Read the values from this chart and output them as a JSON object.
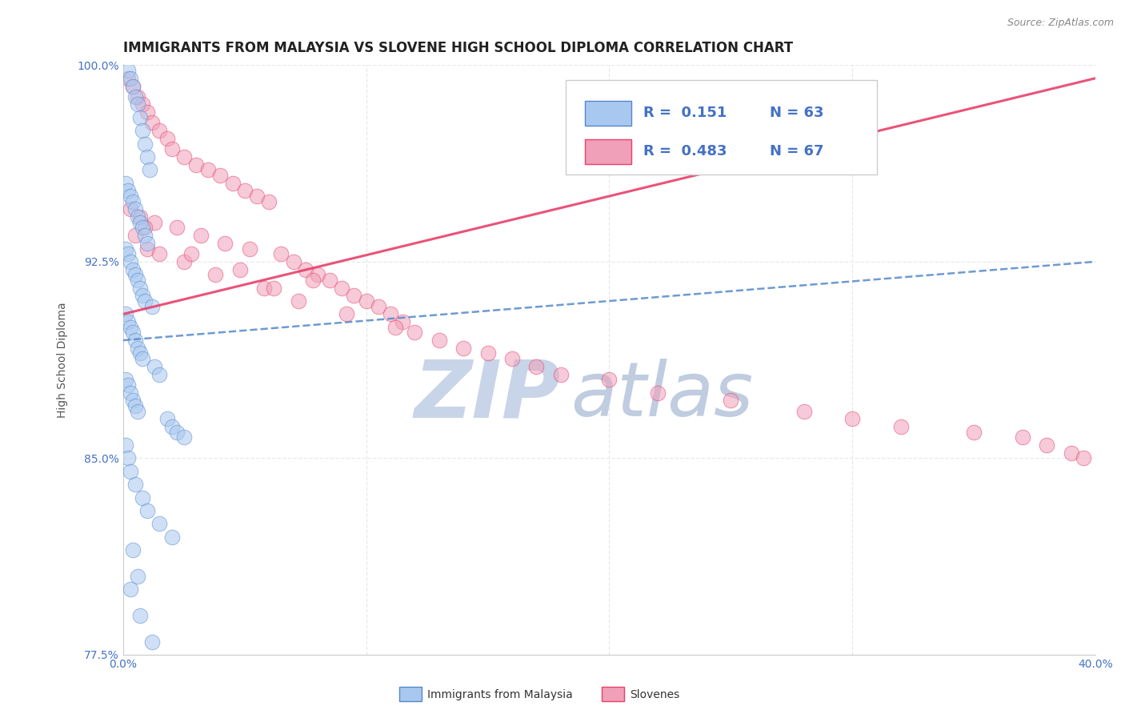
{
  "title": "IMMIGRANTS FROM MALAYSIA VS SLOVENE HIGH SCHOOL DIPLOMA CORRELATION CHART",
  "source_text": "Source: ZipAtlas.com",
  "ylabel": "High School Diploma",
  "xlim": [
    0.0,
    40.0
  ],
  "ylim": [
    77.5,
    100.0
  ],
  "ytick_positions": [
    77.5,
    85.0,
    92.5,
    100.0
  ],
  "ytick_labels": [
    "77.5%",
    "85.0%",
    "92.5%",
    "100.0%"
  ],
  "legend_r1": "R =  0.151",
  "legend_n1": "N = 63",
  "legend_r2": "R =  0.483",
  "legend_n2": "N = 67",
  "legend_label1": "Immigrants from Malaysia",
  "legend_label2": "Slovenes",
  "color_blue": "#A8C8F0",
  "color_pink": "#F0A0B8",
  "color_blue_line": "#5588CC",
  "color_pink_line": "#E8406A",
  "watermark_zip": "ZIP",
  "watermark_atlas": "atlas",
  "watermark_color_zip": "#C8D4E8",
  "watermark_color_atlas": "#C0CCE0",
  "grid_color": "#E8E8E8",
  "bg_color": "#FFFFFF",
  "title_fontsize": 12,
  "axis_fontsize": 10,
  "tick_fontsize": 10,
  "blue_scatter_x": [
    0.2,
    0.3,
    0.4,
    0.5,
    0.6,
    0.7,
    0.8,
    0.9,
    1.0,
    1.1,
    0.1,
    0.2,
    0.3,
    0.4,
    0.5,
    0.6,
    0.7,
    0.8,
    0.9,
    1.0,
    0.1,
    0.2,
    0.3,
    0.4,
    0.5,
    0.6,
    0.7,
    0.8,
    0.9,
    1.2,
    0.1,
    0.2,
    0.3,
    0.4,
    0.5,
    0.6,
    0.7,
    0.8,
    1.3,
    1.5,
    0.1,
    0.2,
    0.3,
    0.4,
    0.5,
    0.6,
    1.8,
    2.0,
    2.2,
    2.5,
    0.1,
    0.2,
    0.3,
    0.5,
    0.8,
    1.0,
    1.5,
    2.0,
    0.4,
    0.6,
    0.3,
    0.7,
    1.2
  ],
  "blue_scatter_y": [
    99.8,
    99.5,
    99.2,
    98.8,
    98.5,
    98.0,
    97.5,
    97.0,
    96.5,
    96.0,
    95.5,
    95.2,
    95.0,
    94.8,
    94.5,
    94.2,
    94.0,
    93.8,
    93.5,
    93.2,
    93.0,
    92.8,
    92.5,
    92.2,
    92.0,
    91.8,
    91.5,
    91.2,
    91.0,
    90.8,
    90.5,
    90.2,
    90.0,
    89.8,
    89.5,
    89.2,
    89.0,
    88.8,
    88.5,
    88.2,
    88.0,
    87.8,
    87.5,
    87.2,
    87.0,
    86.8,
    86.5,
    86.2,
    86.0,
    85.8,
    85.5,
    85.0,
    84.5,
    84.0,
    83.5,
    83.0,
    82.5,
    82.0,
    81.5,
    80.5,
    80.0,
    79.0,
    78.0
  ],
  "pink_scatter_x": [
    0.2,
    0.4,
    0.6,
    0.8,
    1.0,
    1.2,
    1.5,
    1.8,
    2.0,
    2.5,
    3.0,
    3.5,
    4.0,
    4.5,
    5.0,
    5.5,
    6.0,
    0.3,
    0.7,
    1.3,
    2.2,
    3.2,
    4.2,
    5.2,
    6.5,
    7.0,
    7.5,
    8.0,
    8.5,
    9.0,
    9.5,
    10.0,
    10.5,
    11.0,
    11.5,
    0.5,
    1.0,
    1.5,
    2.5,
    3.8,
    5.8,
    7.2,
    9.2,
    11.2,
    13.0,
    15.0,
    17.0,
    20.0,
    22.0,
    25.0,
    28.0,
    30.0,
    32.0,
    35.0,
    37.0,
    38.0,
    39.0,
    39.5,
    12.0,
    14.0,
    16.0,
    18.0,
    7.8,
    4.8,
    2.8,
    0.9,
    6.2
  ],
  "pink_scatter_y": [
    99.5,
    99.2,
    98.8,
    98.5,
    98.2,
    97.8,
    97.5,
    97.2,
    96.8,
    96.5,
    96.2,
    96.0,
    95.8,
    95.5,
    95.2,
    95.0,
    94.8,
    94.5,
    94.2,
    94.0,
    93.8,
    93.5,
    93.2,
    93.0,
    92.8,
    92.5,
    92.2,
    92.0,
    91.8,
    91.5,
    91.2,
    91.0,
    90.8,
    90.5,
    90.2,
    93.5,
    93.0,
    92.8,
    92.5,
    92.0,
    91.5,
    91.0,
    90.5,
    90.0,
    89.5,
    89.0,
    88.5,
    88.0,
    87.5,
    87.2,
    86.8,
    86.5,
    86.2,
    86.0,
    85.8,
    85.5,
    85.2,
    85.0,
    89.8,
    89.2,
    88.8,
    88.2,
    91.8,
    92.2,
    92.8,
    93.8,
    91.5
  ],
  "blue_trendline_x": [
    0.0,
    40.0
  ],
  "blue_trendline_y": [
    89.5,
    92.5
  ],
  "pink_trendline_x": [
    0.0,
    40.0
  ],
  "pink_trendline_y": [
    90.5,
    99.5
  ]
}
